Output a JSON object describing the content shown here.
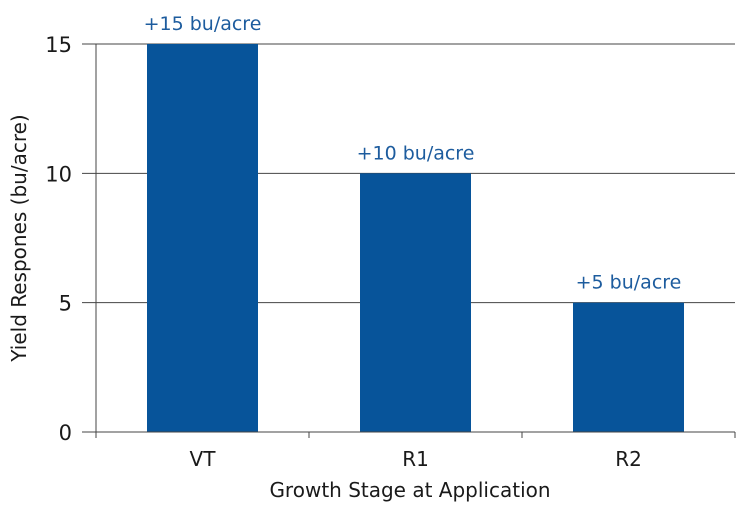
{
  "chart_data": {
    "type": "bar",
    "title": "",
    "xlabel": "Growth Stage at Application",
    "ylabel": "Yield Respones (bu/acre)",
    "categories": [
      "VT",
      "R1",
      "R2"
    ],
    "values": [
      15,
      10,
      5
    ],
    "data_labels": [
      "+15 bu/acre",
      "+10 bu/acre",
      "+5 bu/acre"
    ],
    "ylim": [
      0,
      15
    ],
    "yticks": [
      0,
      5,
      10,
      15
    ],
    "ytick_labels": [
      "0",
      "5",
      "10",
      "15"
    ],
    "grid": true,
    "legend": "none",
    "colors": {
      "bar": "#07549a",
      "data_label": "#1d5c9e",
      "axis": "#333333",
      "text": "#1a1a1a"
    }
  }
}
